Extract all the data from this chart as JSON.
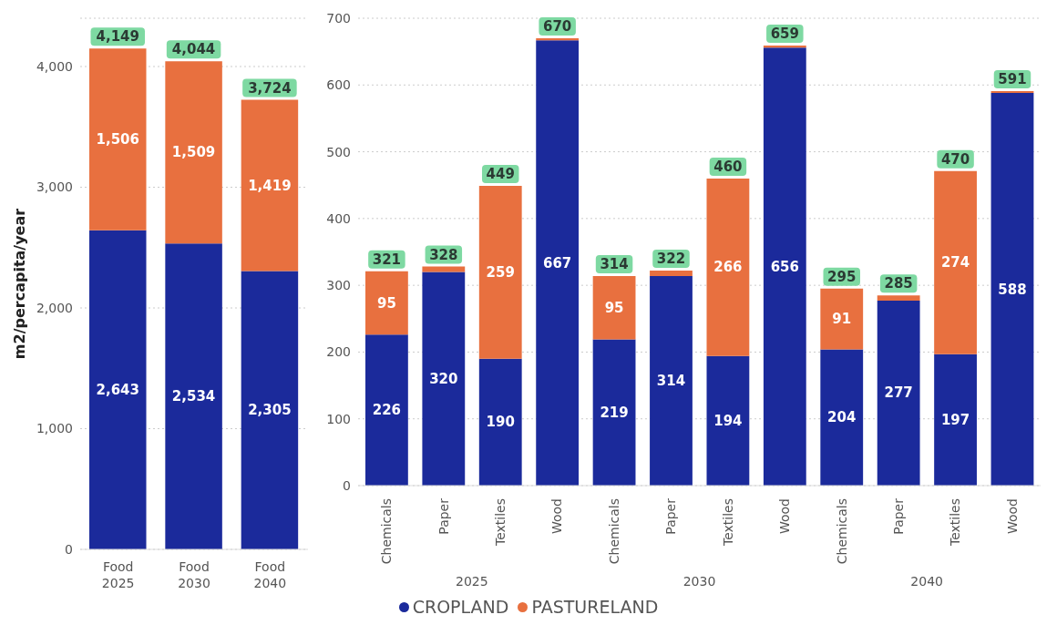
{
  "chart_data": [
    {
      "type": "bar",
      "stacked": true,
      "ylabel": "m2/percapita/year",
      "categories": [
        "Food 2025",
        "Food 2030",
        "Food 2040"
      ],
      "series": [
        {
          "color": "#1b2a9b",
          "values": [
            2643,
            2534,
            2305
          ],
          "value_labels": [
            "2,643",
            "2,534",
            "2,305"
          ]
        },
        {
          "color": "#e8703f",
          "values": [
            1506,
            1509,
            1419
          ],
          "value_labels": [
            "1,506",
            "1,509",
            "1,419"
          ]
        }
      ],
      "totals": [
        "4,149",
        "4,044",
        "3,724"
      ],
      "ylim": [
        0,
        4400
      ],
      "yticks": [
        {
          "value": 0,
          "label": "0"
        },
        {
          "value": 1000,
          "label": "1,000"
        },
        {
          "value": 2000,
          "label": "2,000"
        },
        {
          "value": 3000,
          "label": "3,000"
        },
        {
          "value": 4000,
          "label": "4,000"
        }
      ],
      "grid": "y",
      "legend": false
    },
    {
      "type": "bar",
      "stacked": true,
      "categories": [
        "Chemicals",
        "Paper",
        "Textiles",
        "Wood",
        "Chemicals",
        "Paper",
        "Textiles",
        "Wood",
        "Chemicals",
        "Paper",
        "Textiles",
        "Wood"
      ],
      "annotations": [
        "2025",
        "2030",
        "2040"
      ],
      "series": [
        {
          "name": "CROPLAND",
          "color": "#1b2a9b",
          "values": [
            226,
            320,
            190,
            667,
            219,
            314,
            194,
            656,
            204,
            277,
            197,
            588
          ],
          "value_labels": [
            "226",
            "320",
            "190",
            "667",
            "219",
            "314",
            "194",
            "656",
            "204",
            "277",
            "197",
            "588"
          ]
        },
        {
          "name": "PASTURELAND",
          "color": "#e8703f",
          "values": [
            95,
            8,
            259,
            3,
            95,
            8,
            266,
            3,
            91,
            8,
            274,
            3
          ],
          "value_labels": [
            "95",
            null,
            "259",
            null,
            "95",
            null,
            "266",
            null,
            "91",
            null,
            "274",
            null
          ]
        }
      ],
      "totals": [
        "321",
        "328",
        "449",
        "670",
        "314",
        "322",
        "460",
        "659",
        "295",
        "285",
        "470",
        "591"
      ],
      "ylim": [
        0,
        700
      ],
      "yticks": [
        0,
        100,
        200,
        300,
        400,
        500,
        600,
        700
      ],
      "grid": "y",
      "legend": "bottom"
    }
  ]
}
